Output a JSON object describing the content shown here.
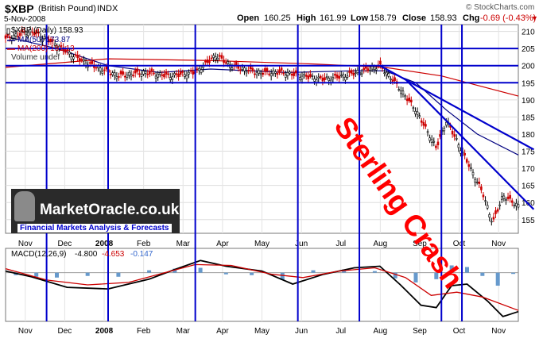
{
  "header": {
    "symbol": "$XBP",
    "name": "(British Pound)",
    "exchange": "INDX",
    "source": "© StockCharts.com",
    "date": "5-Nov-2008",
    "open_label": "Open",
    "open": "160.25",
    "high_label": "High",
    "high": "161.99",
    "low_label": "Low",
    "low": "158.79",
    "close_label": "Close",
    "close": "158.93",
    "chg_label": "Chg",
    "chg": "-0.69 (-0.43%)",
    "chg_arrow": "▼"
  },
  "legend": {
    "price": "$XBP (Daily) 158.93",
    "ma50": "MA(50) 173.87",
    "ma200": "MA(200) 191.13",
    "volume": "Volume undef"
  },
  "annotation": "Sterling Crash",
  "watermark": {
    "logo_text": "MarketOracle.co.uk",
    "tagline": "Financial Markets Analysis & Forecasts"
  },
  "macd_legend": {
    "label": "MACD(12,26,9)",
    "macd": "-4.800",
    "signal": "-4.653",
    "hist": "-0.147"
  },
  "colors": {
    "price_up": "#000000",
    "price_down": "#cc0000",
    "ma50": "#000080",
    "ma200": "#cc0000",
    "trendlines": "#0000cc",
    "annotation": "#ff0000",
    "macd_hist": "#6699cc"
  },
  "chart_data": [
    {
      "type": "candlestick",
      "y_axis": "right",
      "ylim": [
        151,
        212
      ],
      "y_ticks": [
        155,
        160,
        165,
        170,
        175,
        180,
        185,
        190,
        195,
        200,
        205,
        210
      ],
      "x_tick_labels": [
        "Nov",
        "Dec",
        "2008",
        "Feb",
        "Mar",
        "Apr",
        "May",
        "Jun",
        "Jul",
        "Aug",
        "Sep",
        "Oct",
        "Nov"
      ],
      "x_ticks_bold": [
        "2008"
      ],
      "grid": true,
      "price_anchors": [
        {
          "x": 0,
          "y": 208
        },
        {
          "x": 0.05,
          "y": 210
        },
        {
          "x": 0.09,
          "y": 207
        },
        {
          "x": 0.13,
          "y": 203
        },
        {
          "x": 0.17,
          "y": 200
        },
        {
          "x": 0.22,
          "y": 197
        },
        {
          "x": 0.27,
          "y": 198
        },
        {
          "x": 0.32,
          "y": 197
        },
        {
          "x": 0.37,
          "y": 198
        },
        {
          "x": 0.41,
          "y": 203
        },
        {
          "x": 0.44,
          "y": 200
        },
        {
          "x": 0.49,
          "y": 198
        },
        {
          "x": 0.54,
          "y": 198
        },
        {
          "x": 0.58,
          "y": 197
        },
        {
          "x": 0.62,
          "y": 196
        },
        {
          "x": 0.66,
          "y": 197
        },
        {
          "x": 0.71,
          "y": 199
        },
        {
          "x": 0.73,
          "y": 200
        },
        {
          "x": 0.76,
          "y": 195
        },
        {
          "x": 0.8,
          "y": 187
        },
        {
          "x": 0.84,
          "y": 176
        },
        {
          "x": 0.86,
          "y": 184
        },
        {
          "x": 0.88,
          "y": 178
        },
        {
          "x": 0.9,
          "y": 172
        },
        {
          "x": 0.93,
          "y": 163
        },
        {
          "x": 0.95,
          "y": 154
        },
        {
          "x": 0.97,
          "y": 162
        },
        {
          "x": 1,
          "y": 159
        }
      ],
      "ma50": [
        {
          "x": 0,
          "y": 208.5
        },
        {
          "x": 0.1,
          "y": 205
        },
        {
          "x": 0.2,
          "y": 200
        },
        {
          "x": 0.3,
          "y": 198
        },
        {
          "x": 0.4,
          "y": 199
        },
        {
          "x": 0.55,
          "y": 198
        },
        {
          "x": 0.68,
          "y": 198.5
        },
        {
          "x": 0.74,
          "y": 198.5
        },
        {
          "x": 0.8,
          "y": 195
        },
        {
          "x": 0.86,
          "y": 187
        },
        {
          "x": 0.92,
          "y": 180
        },
        {
          "x": 1,
          "y": 173.9
        }
      ],
      "ma200": [
        {
          "x": 0,
          "y": 199.5
        },
        {
          "x": 0.2,
          "y": 202
        },
        {
          "x": 0.4,
          "y": 201.5
        },
        {
          "x": 0.6,
          "y": 200.5
        },
        {
          "x": 0.74,
          "y": 199.5
        },
        {
          "x": 0.85,
          "y": 197
        },
        {
          "x": 1,
          "y": 191.1
        }
      ],
      "horizontal_lines": [
        205,
        200,
        195
      ],
      "vertical_lines": [
        0.08,
        0.2,
        0.37,
        0.57,
        0.69,
        0.85,
        0.89
      ],
      "trendlines": [
        {
          "x1": 0.73,
          "y1": 200,
          "x2": 1.03,
          "y2": 175.5
        },
        {
          "x1": 0.78,
          "y1": 196,
          "x2": 1.03,
          "y2": 158
        }
      ]
    },
    {
      "type": "line",
      "name": "MACD(12,26,9)",
      "ylim": [
        -6,
        3
      ],
      "x_tick_labels": [
        "Nov",
        "Dec",
        "2008",
        "Feb",
        "Mar",
        "Apr",
        "May",
        "Jun",
        "Jul",
        "Aug",
        "Sep",
        "Oct",
        "Nov"
      ],
      "grid": true,
      "series": [
        {
          "points": [
            {
              "x": 0,
              "y": 0.2
            },
            {
              "x": 0.05,
              "y": -0.5
            },
            {
              "x": 0.12,
              "y": -1.8
            },
            {
              "x": 0.2,
              "y": -2.0
            },
            {
              "x": 0.28,
              "y": -0.8
            },
            {
              "x": 0.33,
              "y": 0.4
            },
            {
              "x": 0.38,
              "y": 1.5
            },
            {
              "x": 0.43,
              "y": 0.8
            },
            {
              "x": 0.5,
              "y": 0.2
            },
            {
              "x": 0.56,
              "y": -1.4
            },
            {
              "x": 0.62,
              "y": -0.2
            },
            {
              "x": 0.68,
              "y": 0.6
            },
            {
              "x": 0.73,
              "y": 0.8
            },
            {
              "x": 0.77,
              "y": -1.5
            },
            {
              "x": 0.81,
              "y": -4.0
            },
            {
              "x": 0.84,
              "y": -4.3
            },
            {
              "x": 0.87,
              "y": -1.6
            },
            {
              "x": 0.9,
              "y": -1.4
            },
            {
              "x": 0.94,
              "y": -3.5
            },
            {
              "x": 0.97,
              "y": -5.4
            },
            {
              "x": 1,
              "y": -4.8
            }
          ]
        },
        {
          "points": [
            {
              "x": 0,
              "y": 0.5
            },
            {
              "x": 0.08,
              "y": -0.9
            },
            {
              "x": 0.16,
              "y": -1.5
            },
            {
              "x": 0.24,
              "y": -1.2
            },
            {
              "x": 0.31,
              "y": 0.0
            },
            {
              "x": 0.37,
              "y": 1.0
            },
            {
              "x": 0.44,
              "y": 0.9
            },
            {
              "x": 0.52,
              "y": -0.2
            },
            {
              "x": 0.58,
              "y": -0.6
            },
            {
              "x": 0.65,
              "y": 0.2
            },
            {
              "x": 0.72,
              "y": 0.6
            },
            {
              "x": 0.78,
              "y": -0.6
            },
            {
              "x": 0.83,
              "y": -2.8
            },
            {
              "x": 0.88,
              "y": -2.4
            },
            {
              "x": 0.93,
              "y": -3.0
            },
            {
              "x": 1,
              "y": -4.65
            }
          ]
        }
      ],
      "histogram": [
        {
          "x": 0.02,
          "y": -0.3
        },
        {
          "x": 0.06,
          "y": -0.5
        },
        {
          "x": 0.1,
          "y": -0.6
        },
        {
          "x": 0.16,
          "y": -0.4
        },
        {
          "x": 0.22,
          "y": -0.5
        },
        {
          "x": 0.28,
          "y": 0.3
        },
        {
          "x": 0.33,
          "y": 0.5
        },
        {
          "x": 0.38,
          "y": 0.6
        },
        {
          "x": 0.43,
          "y": -0.2
        },
        {
          "x": 0.48,
          "y": -0.3
        },
        {
          "x": 0.54,
          "y": -0.9
        },
        {
          "x": 0.6,
          "y": 0.3
        },
        {
          "x": 0.66,
          "y": 0.4
        },
        {
          "x": 0.72,
          "y": 0.2
        },
        {
          "x": 0.76,
          "y": -0.7
        },
        {
          "x": 0.8,
          "y": -1.2
        },
        {
          "x": 0.84,
          "y": -0.8
        },
        {
          "x": 0.87,
          "y": 0.9
        },
        {
          "x": 0.9,
          "y": 0.7
        },
        {
          "x": 0.93,
          "y": -0.4
        },
        {
          "x": 0.96,
          "y": -1.6
        },
        {
          "x": 0.99,
          "y": -0.15
        }
      ]
    }
  ]
}
